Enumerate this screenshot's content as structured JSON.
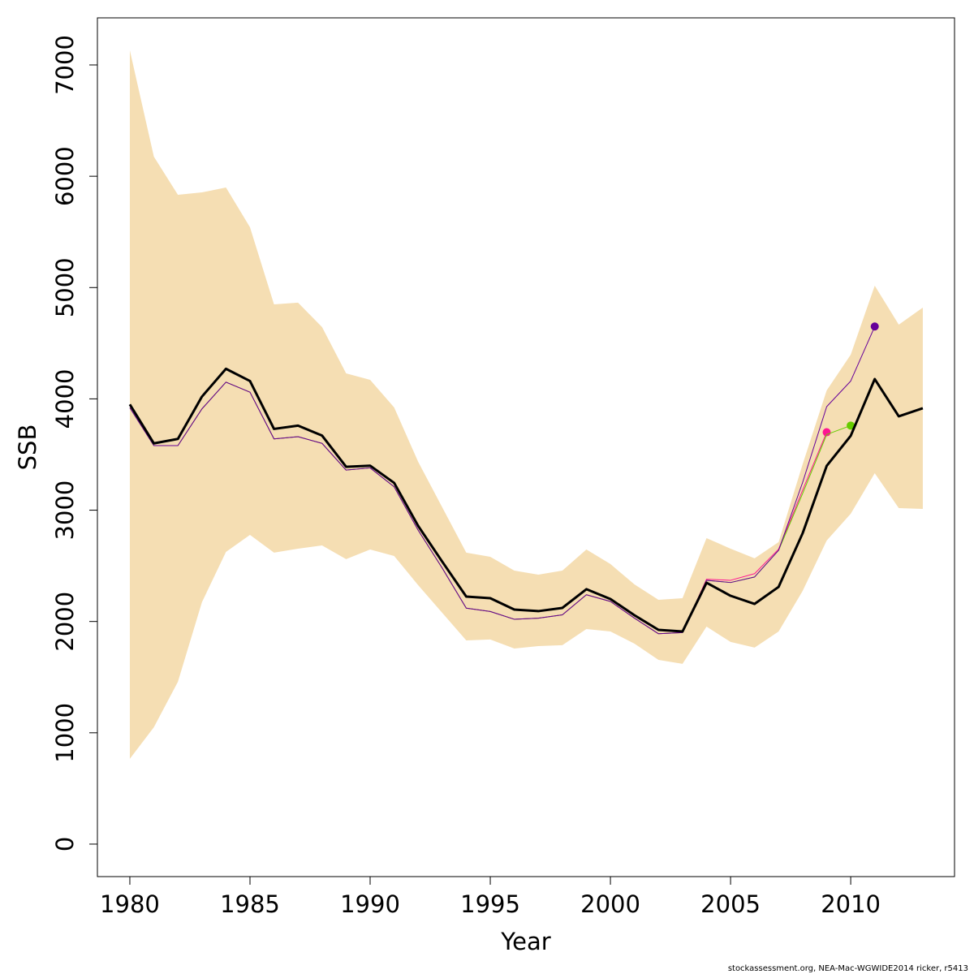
{
  "chart_data": {
    "type": "line",
    "x_label": "Year",
    "y_label": "SSB",
    "footer": "stockassessment.org, NEA-Mac-WGWIDE2014 ricker, r5413",
    "x": [
      1980,
      1981,
      1982,
      1983,
      1984,
      1985,
      1986,
      1987,
      1988,
      1989,
      1990,
      1991,
      1992,
      1993,
      1994,
      1995,
      1996,
      1997,
      1998,
      1999,
      2000,
      2001,
      2002,
      2003,
      2004,
      2005,
      2006,
      2007,
      2008,
      2009,
      2010,
      2011,
      2012,
      2013
    ],
    "xlim": [
      1978.65,
      2014.32
    ],
    "xticks": [
      1980,
      1985,
      1990,
      1995,
      2000,
      2005,
      2010
    ],
    "ylim": [
      -292,
      7423
    ],
    "yticks": [
      0,
      1000,
      2000,
      3000,
      4000,
      5000,
      6000,
      7000
    ],
    "band": {
      "color": "#f5deb3",
      "upper": [
        7131,
        6176,
        5833,
        5855,
        5899,
        5542,
        4849,
        4864,
        4645,
        4229,
        4171,
        3923,
        3434,
        3026,
        2618,
        2581,
        2457,
        2421,
        2457,
        2647,
        2516,
        2333,
        2195,
        2209,
        2749,
        2654,
        2567,
        2713,
        3413,
        4076,
        4397,
        5017,
        4667,
        4820
      ],
      "lower": [
        766,
        1050,
        1458,
        2173,
        2625,
        2778,
        2618,
        2654,
        2683,
        2560,
        2647,
        2588,
        2326,
        2078,
        1830,
        1838,
        1757,
        1779,
        1787,
        1932,
        1910,
        1801,
        1655,
        1619,
        1954,
        1816,
        1765,
        1910,
        2275,
        2727,
        2968,
        3332,
        3019,
        3011
      ]
    },
    "series": [
      {
        "color": "#ff1493",
        "width": 1,
        "end_marker": true,
        "values": [
          3920,
          3580,
          3580,
          3910,
          4150,
          4060,
          3640,
          3660,
          3600,
          3360,
          3380,
          3210,
          2820,
          2480,
          2120,
          2090,
          2020,
          2030,
          2060,
          2240,
          2180,
          2030,
          1890,
          1900,
          2380,
          2370,
          2430,
          2650,
          3180,
          3700,
          null,
          null,
          null,
          null
        ]
      },
      {
        "color": "#66cc00",
        "width": 1,
        "end_marker": true,
        "values": [
          3920,
          3580,
          3580,
          3910,
          4150,
          4060,
          3640,
          3660,
          3600,
          3360,
          3380,
          3210,
          2820,
          2480,
          2120,
          2090,
          2020,
          2030,
          2060,
          2240,
          2180,
          2030,
          1890,
          1900,
          2370,
          2350,
          2400,
          2640,
          3150,
          3680,
          3760,
          null,
          null,
          null
        ]
      },
      {
        "color": "#660099",
        "width": 1,
        "end_marker": true,
        "values": [
          3920,
          3580,
          3580,
          3910,
          4150,
          4060,
          3640,
          3660,
          3600,
          3360,
          3380,
          3210,
          2820,
          2480,
          2120,
          2090,
          2020,
          2030,
          2060,
          2240,
          2180,
          2030,
          1890,
          1900,
          2370,
          2350,
          2400,
          2640,
          3250,
          3930,
          4160,
          4650,
          null,
          null
        ]
      },
      {
        "color": "#000000",
        "width": 3,
        "end_marker": false,
        "values": [
          3950,
          3600,
          3640,
          4020,
          4270,
          4160,
          3730,
          3760,
          3670,
          3390,
          3400,
          3245,
          2858,
          2538,
          2224,
          2209,
          2107,
          2093,
          2122,
          2290,
          2202,
          2056,
          1925,
          1910,
          2348,
          2231,
          2158,
          2311,
          2793,
          3398,
          3668,
          4178,
          3843,
          3916
        ]
      }
    ]
  }
}
